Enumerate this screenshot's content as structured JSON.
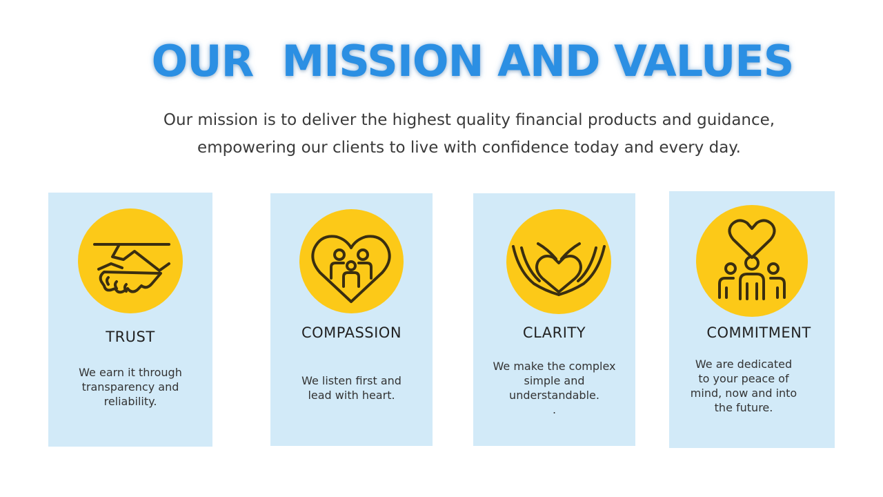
{
  "title": "OUR  MISSION AND VALUES",
  "mission_line1": "Our mission is to deliver the highest quality financial products and guidance,",
  "mission_line2": "empowering our clients to live with confidence today and every day.",
  "colors": {
    "title": "#2b8fe3",
    "card_background": "#d2eaf8",
    "icon_circle": "#fcc918",
    "icon_stroke": "#3a2e10"
  },
  "values": [
    {
      "icon": "handshake-icon",
      "title": "TRUST",
      "text": "We earn it through\ntransparency and\nreliability."
    },
    {
      "icon": "family-heart-icon",
      "title": "COMPASSION",
      "text": "We listen first and\nlead with heart."
    },
    {
      "icon": "heart-hands-icon",
      "title": "CLARITY",
      "text": "We make the complex\nsimple and\nunderstandable.\n."
    },
    {
      "icon": "community-heart-icon",
      "title": "COMMITMENT",
      "text": "We are dedicated\nto your peace of\nmind, now and into\nthe future."
    }
  ]
}
